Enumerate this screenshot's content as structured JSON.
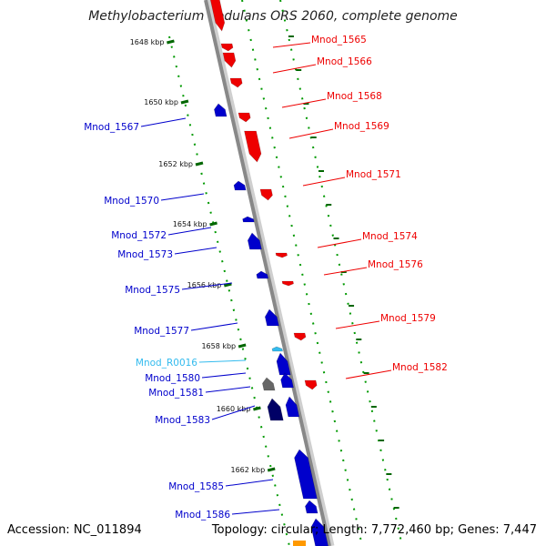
{
  "header": {
    "title": "Methylobacterium nodulans ORS 2060, complete genome"
  },
  "footer": {
    "accession": "Accession: NC_011894",
    "summary": "Topology: circular; Length: 7,772,460 bp; Genes: 7,447"
  },
  "colors": {
    "forward": "#ee0000",
    "reverse": "#0000cc",
    "rna": "#33bbee",
    "pseudo": "#666666",
    "dark": "#000066",
    "scale": "#006600",
    "grid": "#009900",
    "axis": "#888888"
  },
  "scale_marks": [
    "1648 kbp",
    "1650 kbp",
    "1652 kbp",
    "1654 kbp",
    "1656 kbp",
    "1658 kbp",
    "1660 kbp",
    "1662 kbp"
  ],
  "genes": {
    "right": [
      "Mnod_1565",
      "Mnod_1566",
      "Mnod_1568",
      "Mnod_1569",
      "Mnod_1571",
      "Mnod_1574",
      "Mnod_1576",
      "Mnod_1579",
      "Mnod_1582"
    ],
    "left": [
      {
        "label": "Mnod_1567",
        "kind": "reverse"
      },
      {
        "label": "Mnod_1570",
        "kind": "reverse"
      },
      {
        "label": "Mnod_1572",
        "kind": "reverse"
      },
      {
        "label": "Mnod_1573",
        "kind": "reverse"
      },
      {
        "label": "Mnod_1575",
        "kind": "reverse"
      },
      {
        "label": "Mnod_1577",
        "kind": "reverse"
      },
      {
        "label": "Mnod_R0016",
        "kind": "rna"
      },
      {
        "label": "Mnod_1580",
        "kind": "reverse"
      },
      {
        "label": "Mnod_1581",
        "kind": "reverse"
      },
      {
        "label": "Mnod_1583",
        "kind": "reverse"
      },
      {
        "label": "Mnod_1585",
        "kind": "reverse"
      },
      {
        "label": "Mnod_1586",
        "kind": "reverse"
      }
    ]
  }
}
